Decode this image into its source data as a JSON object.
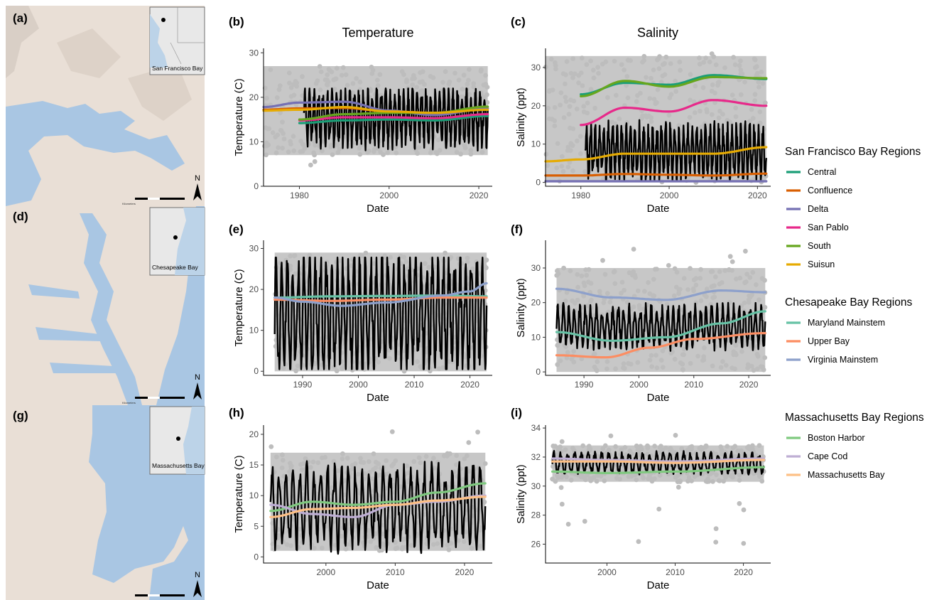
{
  "figure": {
    "panel_labels": [
      "(a)",
      "(b)",
      "(c)",
      "(d)",
      "(e)",
      "(f)",
      "(g)",
      "(h)",
      "(i)"
    ],
    "column_titles": [
      "Temperature",
      "Salinity"
    ]
  },
  "maps": [
    {
      "label": "(a)",
      "inset_label": "San Francisco Bay",
      "north": "N",
      "scale_unit": "Kilometers",
      "scale_ticks": [
        "0",
        "5",
        "10",
        "20",
        "30",
        "40"
      ]
    },
    {
      "label": "(d)",
      "inset_label": "Chesapeake Bay",
      "north": "N",
      "scale_unit": "Kilometers",
      "scale_ticks": [
        "0",
        "12.5",
        "25",
        "50",
        "75",
        "100"
      ]
    },
    {
      "label": "(g)",
      "inset_label": "Massachusetts Bay",
      "north": "N",
      "scale_unit": "Kilometers",
      "scale_ticks": [
        "0",
        "5",
        "10",
        "20",
        "30",
        "40"
      ]
    }
  ],
  "colors": {
    "raw_points": "#bdbdbd",
    "monthly_line": "#000000",
    "Central": "#1b9e77",
    "Confluence": "#d95f02",
    "Delta": "#7570b3",
    "San Pablo": "#e7298a",
    "South": "#66a61e",
    "Suisun": "#e6ab02",
    "Maryland Mainstem": "#66c2a5",
    "Upper Bay": "#fc8d62",
    "Virginia Mainstem": "#8da0cb",
    "Boston Harbor": "#7fc97f",
    "Cape Cod": "#beaed4",
    "Massachusetts Bay": "#fdc086"
  },
  "legend": [
    {
      "title": "San Francisco Bay Regions",
      "items": [
        "Central",
        "Confluence",
        "Delta",
        "San Pablo",
        "South",
        "Suisun"
      ]
    },
    {
      "title": "Chesapeake Bay Regions",
      "items": [
        "Maryland Mainstem",
        "Upper Bay",
        "Virginia Mainstem"
      ]
    },
    {
      "title": "Massachusetts Bay Regions",
      "items": [
        "Boston Harbor",
        "Cape Cod",
        "Massachusetts Bay"
      ]
    }
  ],
  "chart_data": [
    {
      "panel": "(b)",
      "type": "line",
      "title": "Temperature",
      "xlabel": "Date",
      "ylabel": "Temperature (C)",
      "xlim": [
        1972,
        2023
      ],
      "ylim": [
        0,
        31
      ],
      "xticks": [
        1980,
        2000,
        2020
      ],
      "yticks": [
        0,
        10,
        20,
        30
      ],
      "raw_range": {
        "x": [
          1972,
          2022
        ],
        "y_low": 7,
        "y_high": 27,
        "y_min": 4.5,
        "y_max": 28
      },
      "monthly": {
        "x": [
          1981,
          2022
        ],
        "baseline": 15.5,
        "amplitude": 5.5,
        "min_low": 8,
        "max_high": 22
      },
      "series": [
        {
          "name": "Central",
          "x": [
            1980,
            1990,
            2000,
            2010,
            2022
          ],
          "values": [
            14.2,
            14.8,
            15.0,
            14.8,
            15.8
          ]
        },
        {
          "name": "Confluence",
          "x": [
            1972,
            1980,
            1990,
            2000,
            2010,
            2022
          ],
          "values": [
            17.2,
            17.5,
            17.6,
            16.8,
            16.5,
            17.5
          ]
        },
        {
          "name": "Delta",
          "x": [
            1972,
            1980,
            1990,
            2000,
            2010,
            2022
          ],
          "values": [
            17.8,
            18.8,
            19.0,
            17.0,
            16.0,
            17.5
          ]
        },
        {
          "name": "San Pablo",
          "x": [
            1980,
            1990,
            2000,
            2010,
            2022
          ],
          "values": [
            14.8,
            15.5,
            15.5,
            15.3,
            16.2
          ]
        },
        {
          "name": "South",
          "x": [
            1980,
            1990,
            2000,
            2010,
            2022
          ],
          "values": [
            15.0,
            16.2,
            16.5,
            16.5,
            17.9
          ]
        },
        {
          "name": "Suisun",
          "x": [
            1972,
            1980,
            1990,
            2000,
            2010,
            2022
          ],
          "values": [
            17.0,
            17.2,
            17.8,
            16.8,
            16.5,
            17.2
          ]
        }
      ]
    },
    {
      "panel": "(c)",
      "type": "line",
      "title": "Salinity",
      "xlabel": "Date",
      "ylabel": "Salinity (ppt)",
      "xlim": [
        1972,
        2023
      ],
      "ylim": [
        -1,
        35
      ],
      "xticks": [
        1980,
        2000,
        2020
      ],
      "yticks": [
        0,
        10,
        20,
        30
      ],
      "raw_range": {
        "x": [
          1972,
          2022
        ],
        "y_low": 0,
        "y_high": 33,
        "y_min": 0,
        "y_max": 34
      },
      "monthly": {
        "x": [
          1981,
          2022
        ],
        "baseline": 8,
        "amplitude": 6,
        "min_low": 0.5,
        "max_high": 28
      },
      "series": [
        {
          "name": "Central",
          "x": [
            1980,
            1990,
            2000,
            2010,
            2022
          ],
          "values": [
            23.0,
            26.0,
            25.5,
            28.0,
            27.0
          ]
        },
        {
          "name": "Confluence",
          "x": [
            1972,
            1980,
            1990,
            2000,
            2010,
            2022
          ],
          "values": [
            1.8,
            1.8,
            2.2,
            2.0,
            1.8,
            2.3
          ]
        },
        {
          "name": "Delta",
          "x": [
            1972,
            1980,
            1990,
            2000,
            2010,
            2022
          ],
          "values": [
            0.3,
            0.3,
            0.3,
            0.3,
            0.3,
            0.3
          ]
        },
        {
          "name": "San Pablo",
          "x": [
            1980,
            1990,
            2000,
            2010,
            2022
          ],
          "values": [
            15.0,
            19.5,
            18.5,
            21.5,
            20.0
          ]
        },
        {
          "name": "South",
          "x": [
            1980,
            1990,
            2000,
            2010,
            2022
          ],
          "values": [
            22.5,
            26.5,
            25.0,
            27.5,
            27.2
          ]
        },
        {
          "name": "Suisun",
          "x": [
            1972,
            1980,
            1990,
            2000,
            2010,
            2022
          ],
          "values": [
            5.5,
            6.0,
            7.5,
            7.5,
            7.5,
            9.2
          ]
        }
      ]
    },
    {
      "panel": "(e)",
      "type": "line",
      "xlabel": "Date",
      "ylabel": "Temperature (C)",
      "xlim": [
        1983,
        2024
      ],
      "ylim": [
        -1,
        32
      ],
      "xticks": [
        1990,
        2000,
        2010,
        2020
      ],
      "yticks": [
        0,
        10,
        20,
        30
      ],
      "raw_range": {
        "x": [
          1985,
          2023
        ],
        "y_low": 0,
        "y_high": 29,
        "y_min": -0.5,
        "y_max": 31
      },
      "monthly": {
        "x": [
          1985,
          2023
        ],
        "baseline": 14,
        "amplitude": 12.5,
        "min_low": 0.5,
        "max_high": 27.8
      },
      "series": [
        {
          "name": "Maryland Mainstem",
          "x": [
            1985,
            1995,
            2005,
            2015,
            2023
          ],
          "values": [
            18.0,
            18.3,
            18.4,
            18.5,
            18.3
          ]
        },
        {
          "name": "Upper Bay",
          "x": [
            1985,
            1995,
            2005,
            2015,
            2023
          ],
          "values": [
            17.5,
            17.2,
            17.5,
            18.0,
            18.0
          ]
        },
        {
          "name": "Virginia Mainstem",
          "x": [
            1985,
            1990,
            1997,
            2005,
            2015,
            2020,
            2023
          ],
          "values": [
            18.0,
            17.0,
            16.0,
            16.8,
            18.5,
            19.5,
            21.5
          ]
        }
      ]
    },
    {
      "panel": "(f)",
      "type": "line",
      "xlabel": "Date",
      "ylabel": "Salinity (ppt)",
      "xlim": [
        1983,
        2024
      ],
      "ylim": [
        -1,
        38
      ],
      "xticks": [
        1990,
        2000,
        2010,
        2020
      ],
      "yticks": [
        0,
        10,
        20,
        30
      ],
      "raw_range": {
        "x": [
          1985,
          2023
        ],
        "y_low": 0,
        "y_high": 30,
        "y_min": 0,
        "y_max": 37
      },
      "monthly": {
        "x": [
          1985,
          2023
        ],
        "baseline": 13,
        "amplitude": 5,
        "min_low": 4.5,
        "max_high": 26
      },
      "series": [
        {
          "name": "Maryland Mainstem",
          "x": [
            1985,
            1995,
            2005,
            2015,
            2023
          ],
          "values": [
            11.5,
            9.0,
            10.0,
            14.0,
            17.5
          ]
        },
        {
          "name": "Upper Bay",
          "x": [
            1985,
            1994,
            2002,
            2010,
            2023
          ],
          "values": [
            4.8,
            4.2,
            7.0,
            9.5,
            11.2
          ]
        },
        {
          "name": "Virginia Mainstem",
          "x": [
            1985,
            1995,
            2005,
            2015,
            2023
          ],
          "values": [
            24.0,
            21.5,
            20.8,
            23.5,
            23.0
          ]
        }
      ]
    },
    {
      "panel": "(h)",
      "type": "line",
      "xlabel": "Date",
      "ylabel": "Temperature (C)",
      "xlim": [
        1991,
        2024
      ],
      "ylim": [
        -1,
        21.5
      ],
      "xticks": [
        2000,
        2010,
        2020
      ],
      "yticks": [
        0,
        5,
        10,
        15,
        20
      ],
      "raw_range": {
        "x": [
          1992,
          2023
        ],
        "y_low": 1,
        "y_high": 17,
        "y_min": -0.8,
        "y_max": 21
      },
      "monthly": {
        "x": [
          1992,
          2023
        ],
        "baseline": 8,
        "amplitude": 5.5,
        "min_low": 0.5,
        "max_high": 16.5
      },
      "series": [
        {
          "name": "Boston Harbor",
          "x": [
            1992,
            1998,
            2004,
            2010,
            2016,
            2023
          ],
          "values": [
            7.5,
            9.0,
            8.5,
            9.0,
            10.5,
            12.0
          ]
        },
        {
          "name": "Cape Cod",
          "x": [
            1992,
            1998,
            2004,
            2010,
            2016,
            2023
          ],
          "values": [
            8.5,
            7.0,
            6.5,
            8.5,
            9.0,
            10.0
          ]
        },
        {
          "name": "Massachusetts Bay",
          "x": [
            1992,
            1998,
            2004,
            2010,
            2016,
            2023
          ],
          "values": [
            6.5,
            7.8,
            8.0,
            8.5,
            9.2,
            9.8
          ]
        }
      ]
    },
    {
      "panel": "(i)",
      "type": "line",
      "xlabel": "Date",
      "ylabel": "Salinity (ppt)",
      "xlim": [
        1991,
        2024
      ],
      "ylim": [
        24.7,
        34.2
      ],
      "xticks": [
        2000,
        2010,
        2020
      ],
      "yticks": [
        26,
        28,
        30,
        32,
        34
      ],
      "raw_range": {
        "x": [
          1992,
          2023
        ],
        "y_low": 30.3,
        "y_high": 32.8,
        "y_min": 25.0,
        "y_max": 33.6
      },
      "monthly": {
        "x": [
          1992,
          2023
        ],
        "baseline": 31.6,
        "amplitude": 0.6,
        "min_low": 30.0,
        "max_high": 32.9
      },
      "series": [
        {
          "name": "Boston Harbor",
          "x": [
            1992,
            2000,
            2010,
            2023
          ],
          "values": [
            31.0,
            30.9,
            31.0,
            31.3
          ]
        },
        {
          "name": "Cape Cod",
          "x": [
            1992,
            2000,
            2010,
            2023
          ],
          "values": [
            31.9,
            31.8,
            31.7,
            31.9
          ]
        },
        {
          "name": "Massachusetts Bay",
          "x": [
            1992,
            2000,
            2010,
            2023
          ],
          "values": [
            31.7,
            31.7,
            31.6,
            31.8
          ]
        }
      ]
    }
  ]
}
